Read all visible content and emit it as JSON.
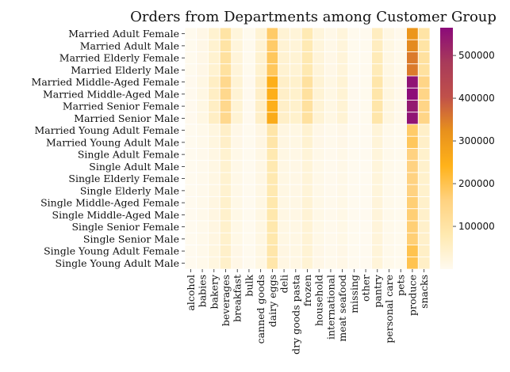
{
  "chart_data": {
    "type": "heatmap",
    "title": "Orders from Departments among Customer Group",
    "xlabel": "",
    "ylabel": "",
    "rows": [
      "Married Adult Female",
      "Married Adult Male",
      "Married Elderly Female",
      "Married Elderly Male",
      "Married Middle-Aged Female",
      "Married Middle-Aged Male",
      "Married Senior Female",
      "Married Senior Male",
      "Married Young Adult Female",
      "Married Young Adult Male",
      "Single Adult Female",
      "Single Adult Male",
      "Single Elderly Female",
      "Single Elderly Male",
      "Single Middle-Aged Female",
      "Single Middle-Aged Male",
      "Single Senior Female",
      "Single Senior Male",
      "Single Young Adult Female",
      "Single Young Adult Male"
    ],
    "columns": [
      "alcohol",
      "babies",
      "bakery",
      "beverages",
      "breakfast",
      "bulk",
      "canned goods",
      "dairy eggs",
      "deli",
      "dry goods pasta",
      "frozen",
      "household",
      "international",
      "meat seafood",
      "missing",
      "other",
      "pantry",
      "personal care",
      "pets",
      "produce",
      "snacks"
    ],
    "values": [
      [
        2000,
        12000,
        40000,
        100000,
        25000,
        2000,
        35000,
        180000,
        35000,
        30000,
        75000,
        25000,
        10000,
        25000,
        2000,
        1000,
        60000,
        15000,
        5000,
        310000,
        100000
      ],
      [
        2000,
        12000,
        40000,
        100000,
        25000,
        2000,
        35000,
        180000,
        35000,
        30000,
        75000,
        25000,
        10000,
        25000,
        2000,
        1000,
        60000,
        15000,
        5000,
        330000,
        100000
      ],
      [
        2000,
        12000,
        40000,
        110000,
        28000,
        2000,
        40000,
        190000,
        38000,
        35000,
        80000,
        28000,
        12000,
        28000,
        2000,
        1000,
        70000,
        16000,
        6000,
        350000,
        110000
      ],
      [
        2000,
        12000,
        40000,
        110000,
        28000,
        2000,
        40000,
        190000,
        38000,
        35000,
        80000,
        28000,
        12000,
        28000,
        2000,
        1000,
        70000,
        16000,
        6000,
        350000,
        110000
      ],
      [
        3000,
        15000,
        55000,
        140000,
        35000,
        3000,
        50000,
        250000,
        50000,
        45000,
        110000,
        35000,
        15000,
        35000,
        3000,
        2000,
        90000,
        20000,
        8000,
        550000,
        150000
      ],
      [
        3000,
        15000,
        55000,
        140000,
        35000,
        3000,
        50000,
        250000,
        50000,
        45000,
        110000,
        35000,
        15000,
        35000,
        3000,
        2000,
        90000,
        20000,
        8000,
        560000,
        150000
      ],
      [
        3000,
        15000,
        55000,
        140000,
        35000,
        3000,
        50000,
        250000,
        50000,
        45000,
        110000,
        35000,
        15000,
        35000,
        3000,
        2000,
        90000,
        20000,
        8000,
        540000,
        150000
      ],
      [
        3000,
        15000,
        55000,
        140000,
        35000,
        3000,
        50000,
        260000,
        50000,
        45000,
        110000,
        35000,
        15000,
        35000,
        3000,
        2000,
        90000,
        20000,
        8000,
        550000,
        150000
      ],
      [
        1000,
        6000,
        20000,
        50000,
        12000,
        1000,
        17000,
        95000,
        18000,
        15000,
        38000,
        12000,
        5000,
        12000,
        1000,
        500,
        30000,
        7000,
        2000,
        180000,
        50000
      ],
      [
        1000,
        6000,
        20000,
        50000,
        12000,
        1000,
        17000,
        95000,
        18000,
        15000,
        38000,
        12000,
        5000,
        12000,
        1000,
        500,
        30000,
        7000,
        2000,
        190000,
        50000
      ],
      [
        1000,
        5000,
        15000,
        40000,
        10000,
        1000,
        14000,
        80000,
        15000,
        13000,
        30000,
        10000,
        4000,
        10000,
        1000,
        500,
        25000,
        6000,
        2000,
        160000,
        45000
      ],
      [
        1000,
        5000,
        15000,
        40000,
        10000,
        1000,
        14000,
        80000,
        15000,
        13000,
        30000,
        10000,
        4000,
        10000,
        1000,
        500,
        25000,
        6000,
        2000,
        160000,
        45000
      ],
      [
        1000,
        5000,
        15000,
        40000,
        10000,
        1000,
        14000,
        80000,
        15000,
        13000,
        30000,
        10000,
        4000,
        10000,
        1000,
        500,
        25000,
        6000,
        2000,
        160000,
        45000
      ],
      [
        1000,
        5000,
        15000,
        40000,
        10000,
        1000,
        14000,
        80000,
        15000,
        13000,
        30000,
        10000,
        4000,
        10000,
        1000,
        500,
        25000,
        6000,
        2000,
        160000,
        45000
      ],
      [
        1000,
        6000,
        18000,
        45000,
        11000,
        1000,
        15000,
        85000,
        16000,
        14000,
        33000,
        11000,
        4500,
        11000,
        1000,
        500,
        27000,
        6500,
        2000,
        170000,
        48000
      ],
      [
        1000,
        6000,
        18000,
        45000,
        11000,
        1000,
        15000,
        85000,
        16000,
        14000,
        33000,
        11000,
        4500,
        11000,
        1000,
        500,
        27000,
        6500,
        2000,
        170000,
        48000
      ],
      [
        1000,
        6000,
        18000,
        45000,
        11000,
        1000,
        15000,
        85000,
        16000,
        14000,
        33000,
        11000,
        4500,
        11000,
        1000,
        500,
        27000,
        6500,
        2000,
        170000,
        48000
      ],
      [
        1000,
        6000,
        18000,
        45000,
        11000,
        1000,
        15000,
        85000,
        16000,
        14000,
        33000,
        11000,
        4500,
        11000,
        1000,
        500,
        27000,
        6500,
        2000,
        170000,
        48000
      ],
      [
        1000,
        6000,
        20000,
        48000,
        12000,
        1000,
        16000,
        90000,
        17000,
        15000,
        35000,
        12000,
        5000,
        12000,
        1000,
        500,
        28000,
        7000,
        2000,
        200000,
        52000
      ],
      [
        1000,
        6000,
        20000,
        48000,
        12000,
        1000,
        16000,
        90000,
        17000,
        15000,
        35000,
        12000,
        5000,
        12000,
        1000,
        500,
        28000,
        7000,
        2000,
        200000,
        52000
      ]
    ],
    "colorbar": {
      "ticks": [
        100000,
        200000,
        300000,
        400000,
        500000
      ],
      "tick_labels": [
        "100000",
        "200000",
        "300000",
        "400000",
        "500000"
      ],
      "range": [
        0,
        565000
      ]
    },
    "colormap": [
      "#fffaef",
      "#ffe9b0",
      "#ffd280",
      "#ffb21a",
      "#e8911c",
      "#c0504a",
      "#a83a5a",
      "#8b0a7a"
    ],
    "grid": "white cell borders",
    "legend": "colorbar-right"
  }
}
